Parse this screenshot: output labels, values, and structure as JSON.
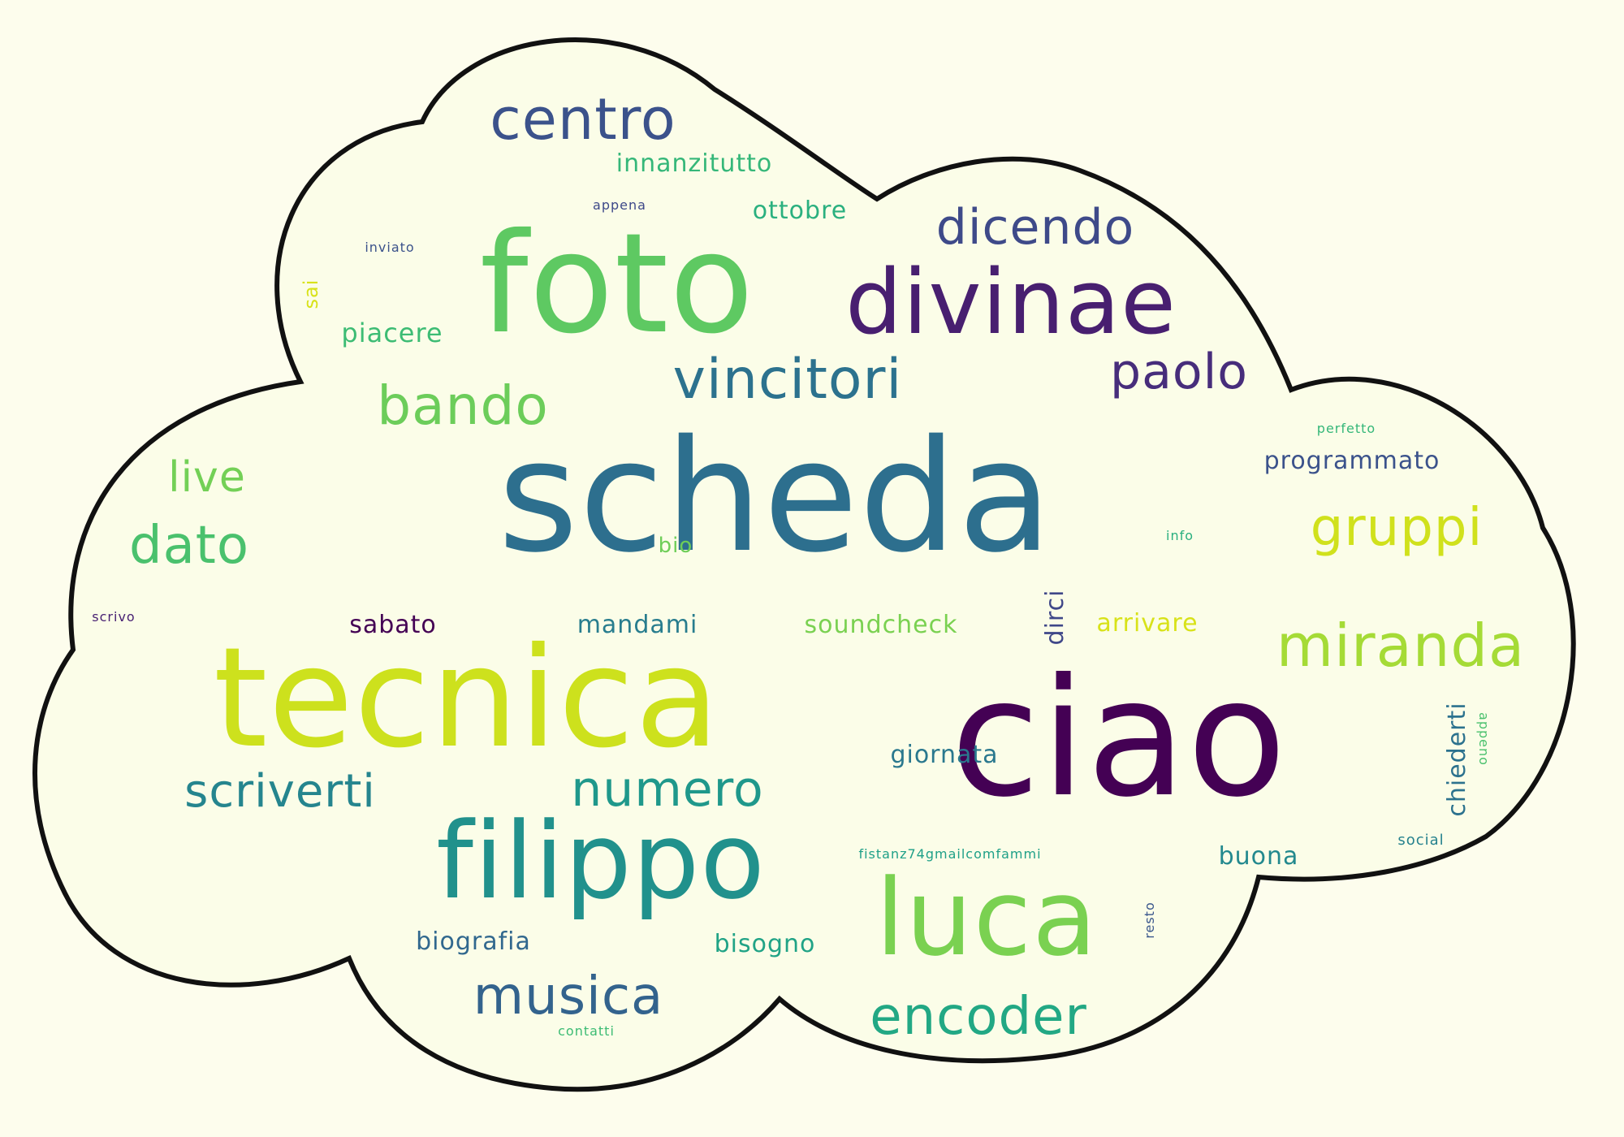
{
  "colors": {
    "background": "#fdfded",
    "outline": "#111111",
    "cloud_fill": "#fbfde8"
  },
  "words": {
    "scheda": {
      "text": "scheda",
      "color": "#2d6f8e"
    },
    "tecnica": {
      "text": "tecnica",
      "color": "#cde11d"
    },
    "ciao": {
      "text": "ciao",
      "color": "#440154"
    },
    "foto": {
      "text": "foto",
      "color": "#5ec962"
    },
    "divinae": {
      "text": "divinae",
      "color": "#481f70"
    },
    "filippo": {
      "text": "filippo",
      "color": "#21918c"
    },
    "luca": {
      "text": "luca",
      "color": "#7ad151"
    },
    "miranda": {
      "text": "miranda",
      "color": "#a5db36"
    },
    "centro": {
      "text": "centro",
      "color": "#3b528b"
    },
    "vincitori": {
      "text": "vincitori",
      "color": "#2c728e"
    },
    "dicendo": {
      "text": "dicendo",
      "color": "#3e4a89"
    },
    "paolo": {
      "text": "paolo",
      "color": "#472d7b"
    },
    "bando": {
      "text": "bando",
      "color": "#6ccd5a"
    },
    "gruppi": {
      "text": "gruppi",
      "color": "#d0e11c"
    },
    "dato": {
      "text": "dato",
      "color": "#4ac16d"
    },
    "numero": {
      "text": "numero",
      "color": "#1f988b"
    },
    "musica": {
      "text": "musica",
      "color": "#33638d"
    },
    "encoder": {
      "text": "encoder",
      "color": "#22a884"
    },
    "scriverti": {
      "text": "scriverti",
      "color": "#25858e"
    },
    "live": {
      "text": "live",
      "color": "#73d056"
    },
    "innanzitutto": {
      "text": "innanzitutto",
      "color": "#35b779"
    },
    "ottobre": {
      "text": "ottobre",
      "color": "#2ab07f"
    },
    "appena": {
      "text": "appena",
      "color": "#3e4989"
    },
    "inviato": {
      "text": "inviato",
      "color": "#3b528b"
    },
    "sai": {
      "text": "sai",
      "color": "#d8e219"
    },
    "piacere": {
      "text": "piacere",
      "color": "#3dbc74"
    },
    "programmato": {
      "text": "programmato",
      "color": "#3b528b"
    },
    "perfetto": {
      "text": "perfetto",
      "color": "#35b779"
    },
    "info": {
      "text": "info",
      "color": "#29af7f"
    },
    "bio": {
      "text": "bio",
      "color": "#6ece58"
    },
    "scrivo": {
      "text": "scrivo",
      "color": "#482173"
    },
    "sabato": {
      "text": "sabato",
      "color": "#440154"
    },
    "mandami": {
      "text": "mandami",
      "color": "#287d8e"
    },
    "soundcheck": {
      "text": "soundcheck",
      "color": "#7ad151"
    },
    "dirci": {
      "text": "dirci",
      "color": "#3f4788"
    },
    "arrivare": {
      "text": "arrivare",
      "color": "#d8e219"
    },
    "giornata": {
      "text": "giornata",
      "color": "#2a788e"
    },
    "chiederti": {
      "text": "chiederti",
      "color": "#2c728e"
    },
    "appeno": {
      "text": "appeno",
      "color": "#4ac16d"
    },
    "social": {
      "text": "social",
      "color": "#26828e"
    },
    "buona": {
      "text": "buona",
      "color": "#23898e"
    },
    "fistanz": {
      "text": "fistanz74gmailcomfammi",
      "color": "#1fa088"
    },
    "resto": {
      "text": "resto",
      "color": "#39568c"
    },
    "biografia": {
      "text": "biografia",
      "color": "#31688e"
    },
    "bisogno": {
      "text": "bisogno",
      "color": "#20a386"
    },
    "contatti": {
      "text": "contatti",
      "color": "#3dbc74"
    }
  }
}
